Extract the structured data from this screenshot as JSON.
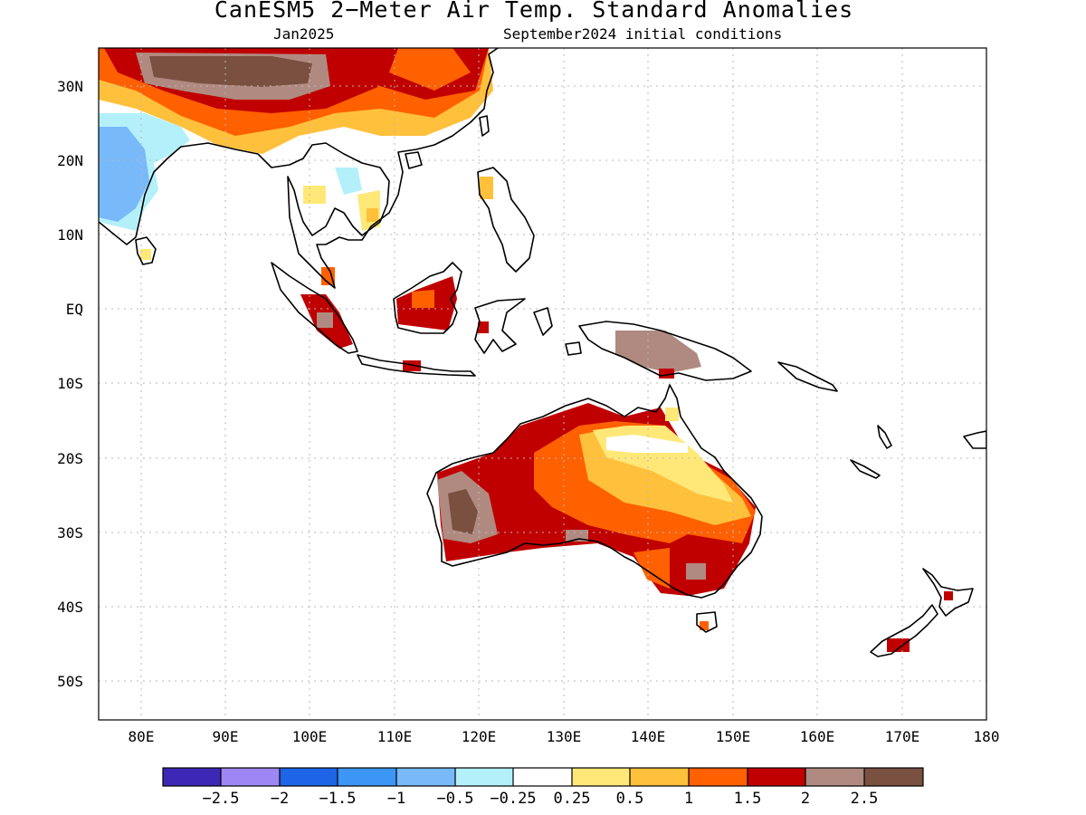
{
  "title": "CanESM5 2−Meter Air Temp. Standard Anomalies",
  "valid_month": "Jan2025",
  "initial_conditions": "September2024 initial conditions",
  "map_extent": {
    "lon": [
      75,
      180
    ],
    "lat": [
      -55,
      35
    ]
  },
  "grid": "on",
  "y_ticks": [
    "30N",
    "20N",
    "10N",
    "EQ",
    "10S",
    "20S",
    "30S",
    "40S",
    "50S"
  ],
  "x_ticks": [
    "80E",
    "90E",
    "100E",
    "110E",
    "120E",
    "130E",
    "140E",
    "150E",
    "160E",
    "170E",
    "180"
  ],
  "colorbar": {
    "colors": [
      "#3c28b4",
      "#9d87f4",
      "#1e64e6",
      "#3c96f5",
      "#78b9fa",
      "#b4f0fa",
      "#ffffff",
      "#ffe878",
      "#ffc03c",
      "#ff6000",
      "#c00000",
      "#b08a80",
      "#7a5040"
    ],
    "labels": [
      "−2.5",
      "−2",
      "−1.5",
      "−1",
      "−0.5",
      "−0.25",
      "0.25",
      "0.5",
      "1",
      "1.5",
      "2",
      "2.5"
    ]
  }
}
